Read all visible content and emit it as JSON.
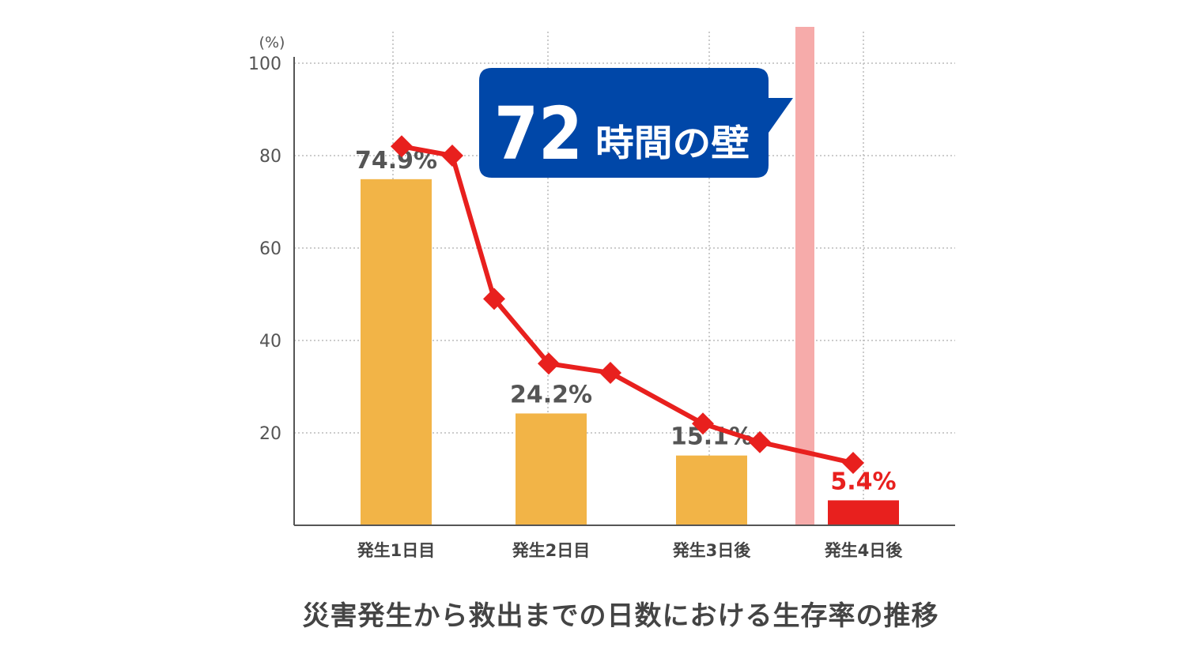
{
  "chart_data": {
    "type": "bar",
    "categories": [
      "発生1日目",
      "発生2日目",
      "発生3日後",
      "発生4日後"
    ],
    "series": [
      {
        "values": [
          74.9,
          24.2,
          15.1,
          5.4
        ]
      }
    ],
    "bar_labels": [
      "74.9%",
      "24.2%",
      "15.1%",
      "5.4%"
    ],
    "line_values": [
      82,
      80,
      49,
      35,
      33,
      22,
      18,
      13.5
    ],
    "y_unit": "(%)",
    "yticks": [
      20,
      40,
      60,
      80,
      100
    ],
    "ylim": [
      0,
      103
    ],
    "grid": true,
    "colors": {
      "bar": "#F2B447",
      "highlight": "#E8201E",
      "line": "#E8201E",
      "marker_line": "#F6ABAA",
      "callout": "#0047A8"
    },
    "callout": {
      "number": "72",
      "text": "時間の壁"
    }
  },
  "caption": "災害発生から救出までの日数における生存率の推移"
}
